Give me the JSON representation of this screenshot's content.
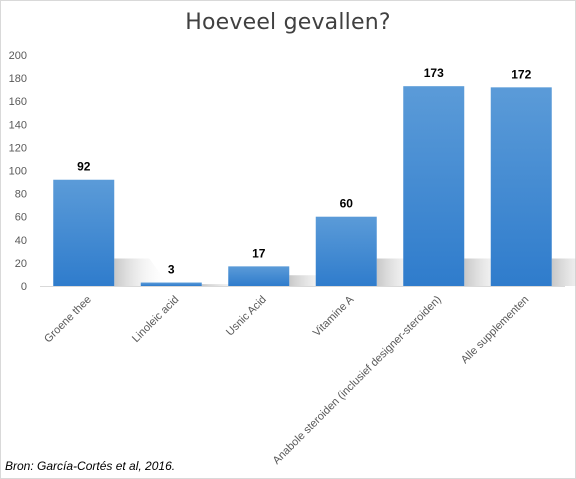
{
  "chart_data": {
    "type": "bar",
    "title": "Hoeveel gevallen?",
    "categories": [
      "Groene thee",
      "Linoleic acid",
      "Usnic Acid",
      "Vitamine A",
      "Anabole steroiden (inclusief designer-steroiden)",
      "Alle supplementen"
    ],
    "values": [
      92,
      3,
      17,
      60,
      173,
      172
    ],
    "data_labels": [
      "92",
      "3",
      "17",
      "60",
      "173",
      "172"
    ],
    "ylim": [
      0,
      200
    ],
    "yticks": [
      "0",
      "20",
      "40",
      "60",
      "80",
      "100",
      "120",
      "140",
      "160",
      "180",
      "200"
    ],
    "xlabel": "",
    "ylabel": "",
    "grid": false,
    "legend": "none",
    "bar_color": "#4a8fd6"
  },
  "source_note": "Bron: García-Cortés et al, 2016."
}
